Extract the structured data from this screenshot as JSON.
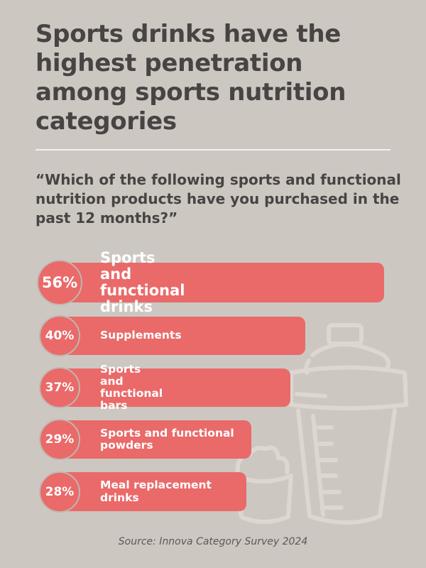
{
  "title": "Sports drinks have the highest penetration among sports nutrition categories",
  "question": "“Which of the following sports and functional nutrition products have you purchased in the past 12 months?”",
  "source": "Source: Innova Category Survey 2024",
  "colors": {
    "background": "#cdc7c2",
    "bar": "#e96a69",
    "text": "#474443",
    "illustration": "#ddd6d1"
  },
  "illustration": [
    "shaker-bottle-icon",
    "protein-powder-cup-icon"
  ],
  "chart_data": {
    "type": "bar",
    "orientation": "horizontal",
    "categories": [
      "Sports and functional drinks",
      "Supplements",
      "Sports and functional bars",
      "Sports and functional powders",
      "Meal replacement drinks"
    ],
    "values": [
      56,
      40,
      37,
      29,
      28
    ],
    "value_labels": [
      "56%",
      "40%",
      "37%",
      "29%",
      "28%"
    ],
    "unit": "%"
  }
}
